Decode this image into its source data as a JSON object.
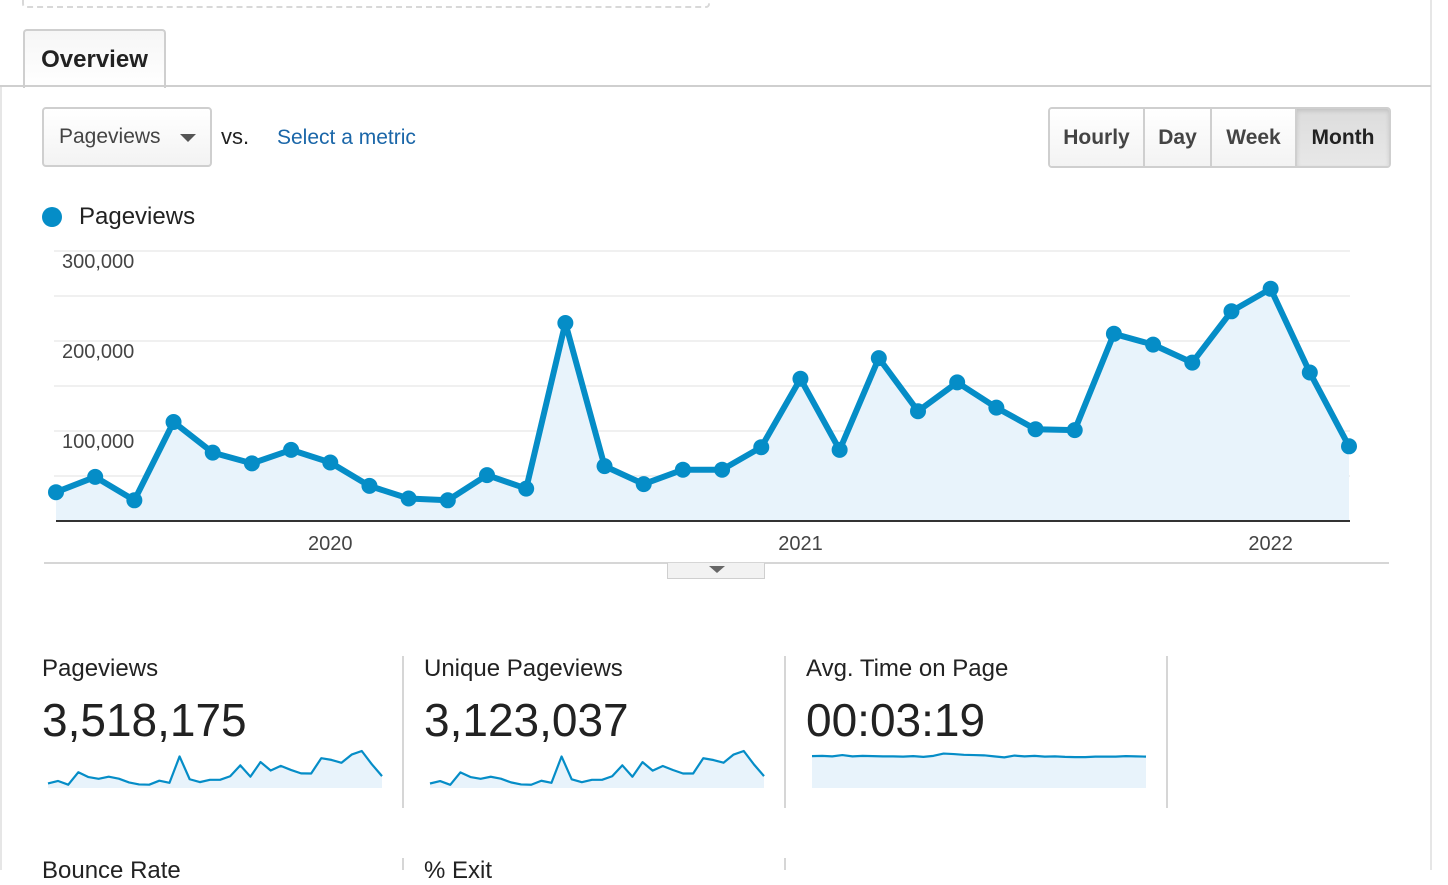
{
  "tabs": [
    {
      "label": "Overview",
      "active": true
    }
  ],
  "controls": {
    "primary_metric": "Pageviews",
    "vs_label": "vs.",
    "compare_link": "Select a metric",
    "periods": [
      {
        "label": "Hourly",
        "active": false
      },
      {
        "label": "Day",
        "active": false
      },
      {
        "label": "Week",
        "active": false
      },
      {
        "label": "Month",
        "active": true
      }
    ]
  },
  "legend": {
    "label": "Pageviews",
    "color": "#058dc7"
  },
  "chart_data": {
    "type": "line",
    "title": "",
    "xlabel": "",
    "ylabel": "",
    "ylim": [
      0,
      300000
    ],
    "y_ticks": [
      100000,
      200000,
      300000
    ],
    "y_tick_labels": [
      "100,000",
      "200,000",
      "300,000"
    ],
    "x_tick_labels": [
      "2020",
      "2021",
      "2022"
    ],
    "x_tick_index": [
      7,
      19,
      31
    ],
    "grid": true,
    "fill_area": true,
    "line_color": "#058dc7",
    "fill_color": "#e8f3fb",
    "series": [
      {
        "name": "Pageviews",
        "values": [
          32000,
          49000,
          23000,
          110000,
          76000,
          64000,
          79000,
          65000,
          39000,
          25000,
          23000,
          51000,
          36000,
          220000,
          61000,
          41000,
          57000,
          57000,
          82000,
          158000,
          79000,
          181000,
          122000,
          154000,
          126000,
          102000,
          101000,
          208000,
          196000,
          176000,
          233000,
          258000,
          165000,
          83000
        ]
      }
    ]
  },
  "stats": [
    {
      "label": "Pageviews",
      "value": "3,518,175",
      "spark": [
        32000,
        49000,
        23000,
        110000,
        76000,
        64000,
        79000,
        65000,
        39000,
        25000,
        23000,
        51000,
        36000,
        220000,
        61000,
        41000,
        57000,
        57000,
        82000,
        158000,
        79000,
        181000,
        122000,
        154000,
        126000,
        102000,
        101000,
        208000,
        196000,
        176000,
        233000,
        258000,
        165000,
        83000
      ]
    },
    {
      "label": "Unique Pageviews",
      "value": "3,123,037",
      "spark": [
        28000,
        43000,
        20000,
        97000,
        68000,
        57000,
        70000,
        58000,
        35000,
        22000,
        20000,
        45000,
        32000,
        196000,
        54000,
        36000,
        51000,
        51000,
        73000,
        141000,
        70000,
        161000,
        108000,
        137000,
        112000,
        90000,
        90000,
        185000,
        174000,
        157000,
        208000,
        230000,
        147000,
        74000
      ]
    },
    {
      "label": "Avg. Time on Page",
      "value": "00:03:19",
      "spark": [
        195,
        196,
        194,
        199,
        194,
        196,
        195,
        194,
        194,
        193,
        195,
        192,
        196,
        205,
        203,
        200,
        199,
        198,
        194,
        190,
        197,
        194,
        196,
        193,
        194,
        192,
        191,
        191,
        193,
        193,
        193,
        195,
        194,
        193
      ]
    }
  ],
  "stats_row2": [
    {
      "label": "Bounce Rate"
    },
    {
      "label": "% Exit"
    }
  ]
}
